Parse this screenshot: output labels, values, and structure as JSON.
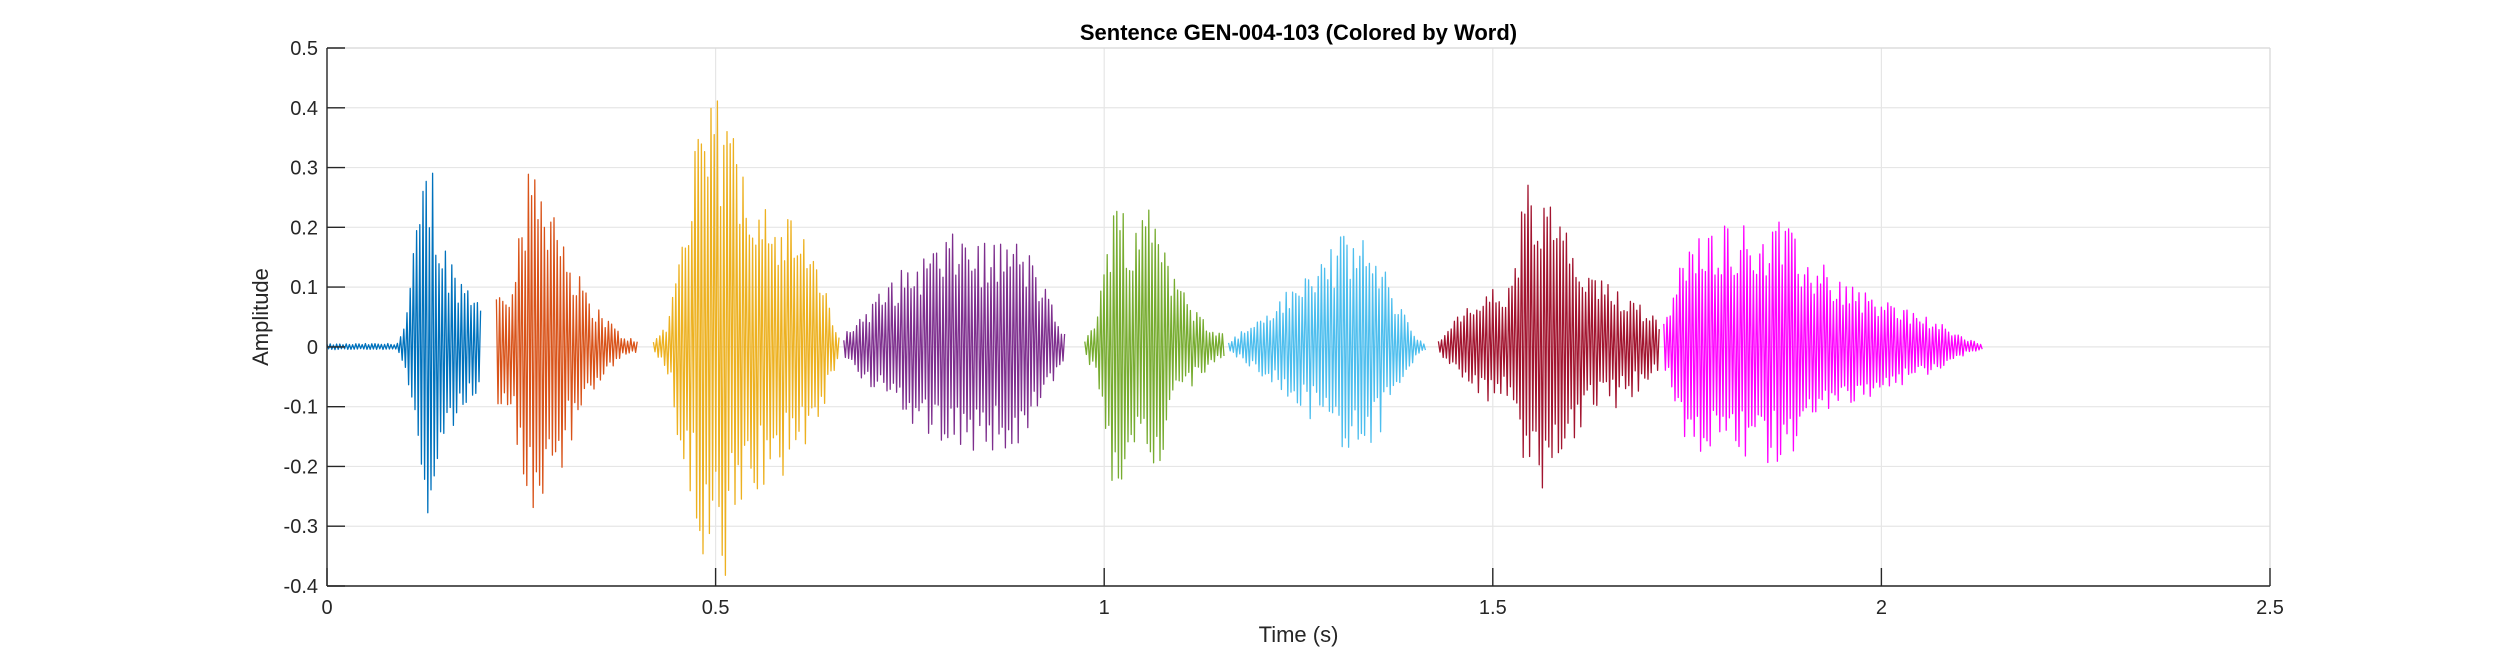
{
  "chart_data": {
    "type": "line",
    "title": "Sentence GEN-004-103 (Colored by Word)",
    "xlabel": "Time (s)",
    "ylabel": "Amplitude",
    "xlim": [
      0,
      2.5
    ],
    "ylim": [
      -0.4,
      0.5
    ],
    "x_ticks": [
      0,
      0.5,
      1,
      1.5,
      2,
      2.5
    ],
    "x_tick_labels": [
      "0",
      "0.5",
      "1",
      "1.5",
      "2",
      "2.5"
    ],
    "y_ticks": [
      -0.4,
      -0.3,
      -0.2,
      -0.1,
      0,
      0.1,
      0.2,
      0.3,
      0.4,
      0.5
    ],
    "y_tick_labels": [
      "-0.4",
      "-0.3",
      "-0.2",
      "-0.1",
      "0",
      "0.1",
      "0.2",
      "0.3",
      "0.4",
      "0.5"
    ],
    "grid": true,
    "series": [
      {
        "color": "#0072BD",
        "start": 0.0,
        "end": 0.199,
        "envelope": [
          [
            0.0,
            0.005
          ],
          [
            0.09,
            0.006
          ],
          [
            0.1,
            0.04
          ],
          [
            0.115,
            0.2
          ],
          [
            0.125,
            0.3
          ],
          [
            0.135,
            0.32
          ],
          [
            0.145,
            0.2
          ],
          [
            0.16,
            0.15
          ],
          [
            0.18,
            0.11
          ],
          [
            0.199,
            0.1
          ]
        ]
      },
      {
        "color": "#D95319",
        "start": 0.218,
        "end": 0.4,
        "envelope": [
          [
            0.218,
            0.1
          ],
          [
            0.235,
            0.12
          ],
          [
            0.255,
            0.27
          ],
          [
            0.265,
            0.32
          ],
          [
            0.275,
            0.31
          ],
          [
            0.29,
            0.27
          ],
          [
            0.3,
            0.22
          ],
          [
            0.33,
            0.1
          ],
          [
            0.36,
            0.05
          ],
          [
            0.38,
            0.02
          ],
          [
            0.4,
            0.01
          ]
        ]
      },
      {
        "color": "#EDB120",
        "start": 0.42,
        "end": 0.66,
        "envelope": [
          [
            0.42,
            0.01
          ],
          [
            0.44,
            0.05
          ],
          [
            0.455,
            0.2
          ],
          [
            0.475,
            0.34
          ],
          [
            0.495,
            0.42
          ],
          [
            0.515,
            0.4
          ],
          [
            0.54,
            0.32
          ],
          [
            0.58,
            0.24
          ],
          [
            0.62,
            0.18
          ],
          [
            0.64,
            0.1
          ],
          [
            0.66,
            0.02
          ]
        ]
      },
      {
        "color": "#7E2F8E",
        "start": 0.665,
        "end": 0.95,
        "envelope": [
          [
            0.665,
            0.02
          ],
          [
            0.69,
            0.06
          ],
          [
            0.73,
            0.12
          ],
          [
            0.78,
            0.17
          ],
          [
            0.82,
            0.2
          ],
          [
            0.85,
            0.17
          ],
          [
            0.88,
            0.19
          ],
          [
            0.91,
            0.15
          ],
          [
            0.93,
            0.08
          ],
          [
            0.95,
            0.02
          ]
        ]
      },
      {
        "color": "#77AC30",
        "start": 0.975,
        "end": 1.155,
        "envelope": [
          [
            0.975,
            0.01
          ],
          [
            0.99,
            0.06
          ],
          [
            1.01,
            0.24
          ],
          [
            1.025,
            0.25
          ],
          [
            1.04,
            0.2
          ],
          [
            1.055,
            0.27
          ],
          [
            1.07,
            0.25
          ],
          [
            1.09,
            0.12
          ],
          [
            1.12,
            0.06
          ],
          [
            1.155,
            0.02
          ]
        ]
      },
      {
        "color": "#4DBEEE",
        "start": 1.16,
        "end": 1.415,
        "envelope": [
          [
            1.16,
            0.01
          ],
          [
            1.19,
            0.04
          ],
          [
            1.24,
            0.1
          ],
          [
            1.29,
            0.17
          ],
          [
            1.32,
            0.2
          ],
          [
            1.35,
            0.16
          ],
          [
            1.38,
            0.08
          ],
          [
            1.4,
            0.02
          ],
          [
            1.415,
            0.005
          ]
        ]
      },
      {
        "color": "#A2142F",
        "start": 1.43,
        "end": 1.715,
        "envelope": [
          [
            1.43,
            0.01
          ],
          [
            1.46,
            0.06
          ],
          [
            1.49,
            0.1
          ],
          [
            1.52,
            0.1
          ],
          [
            1.545,
            0.29
          ],
          [
            1.56,
            0.24
          ],
          [
            1.58,
            0.25
          ],
          [
            1.62,
            0.12
          ],
          [
            1.67,
            0.1
          ],
          [
            1.715,
            0.05
          ]
        ]
      },
      {
        "color": "#FF00FF",
        "start": 1.72,
        "end": 2.13,
        "envelope": [
          [
            1.72,
            0.04
          ],
          [
            1.75,
            0.18
          ],
          [
            1.8,
            0.22
          ],
          [
            1.84,
            0.2
          ],
          [
            1.87,
            0.22
          ],
          [
            1.9,
            0.16
          ],
          [
            1.95,
            0.12
          ],
          [
            2.0,
            0.08
          ],
          [
            2.05,
            0.06
          ],
          [
            2.1,
            0.02
          ],
          [
            2.13,
            0.005
          ]
        ]
      }
    ]
  }
}
